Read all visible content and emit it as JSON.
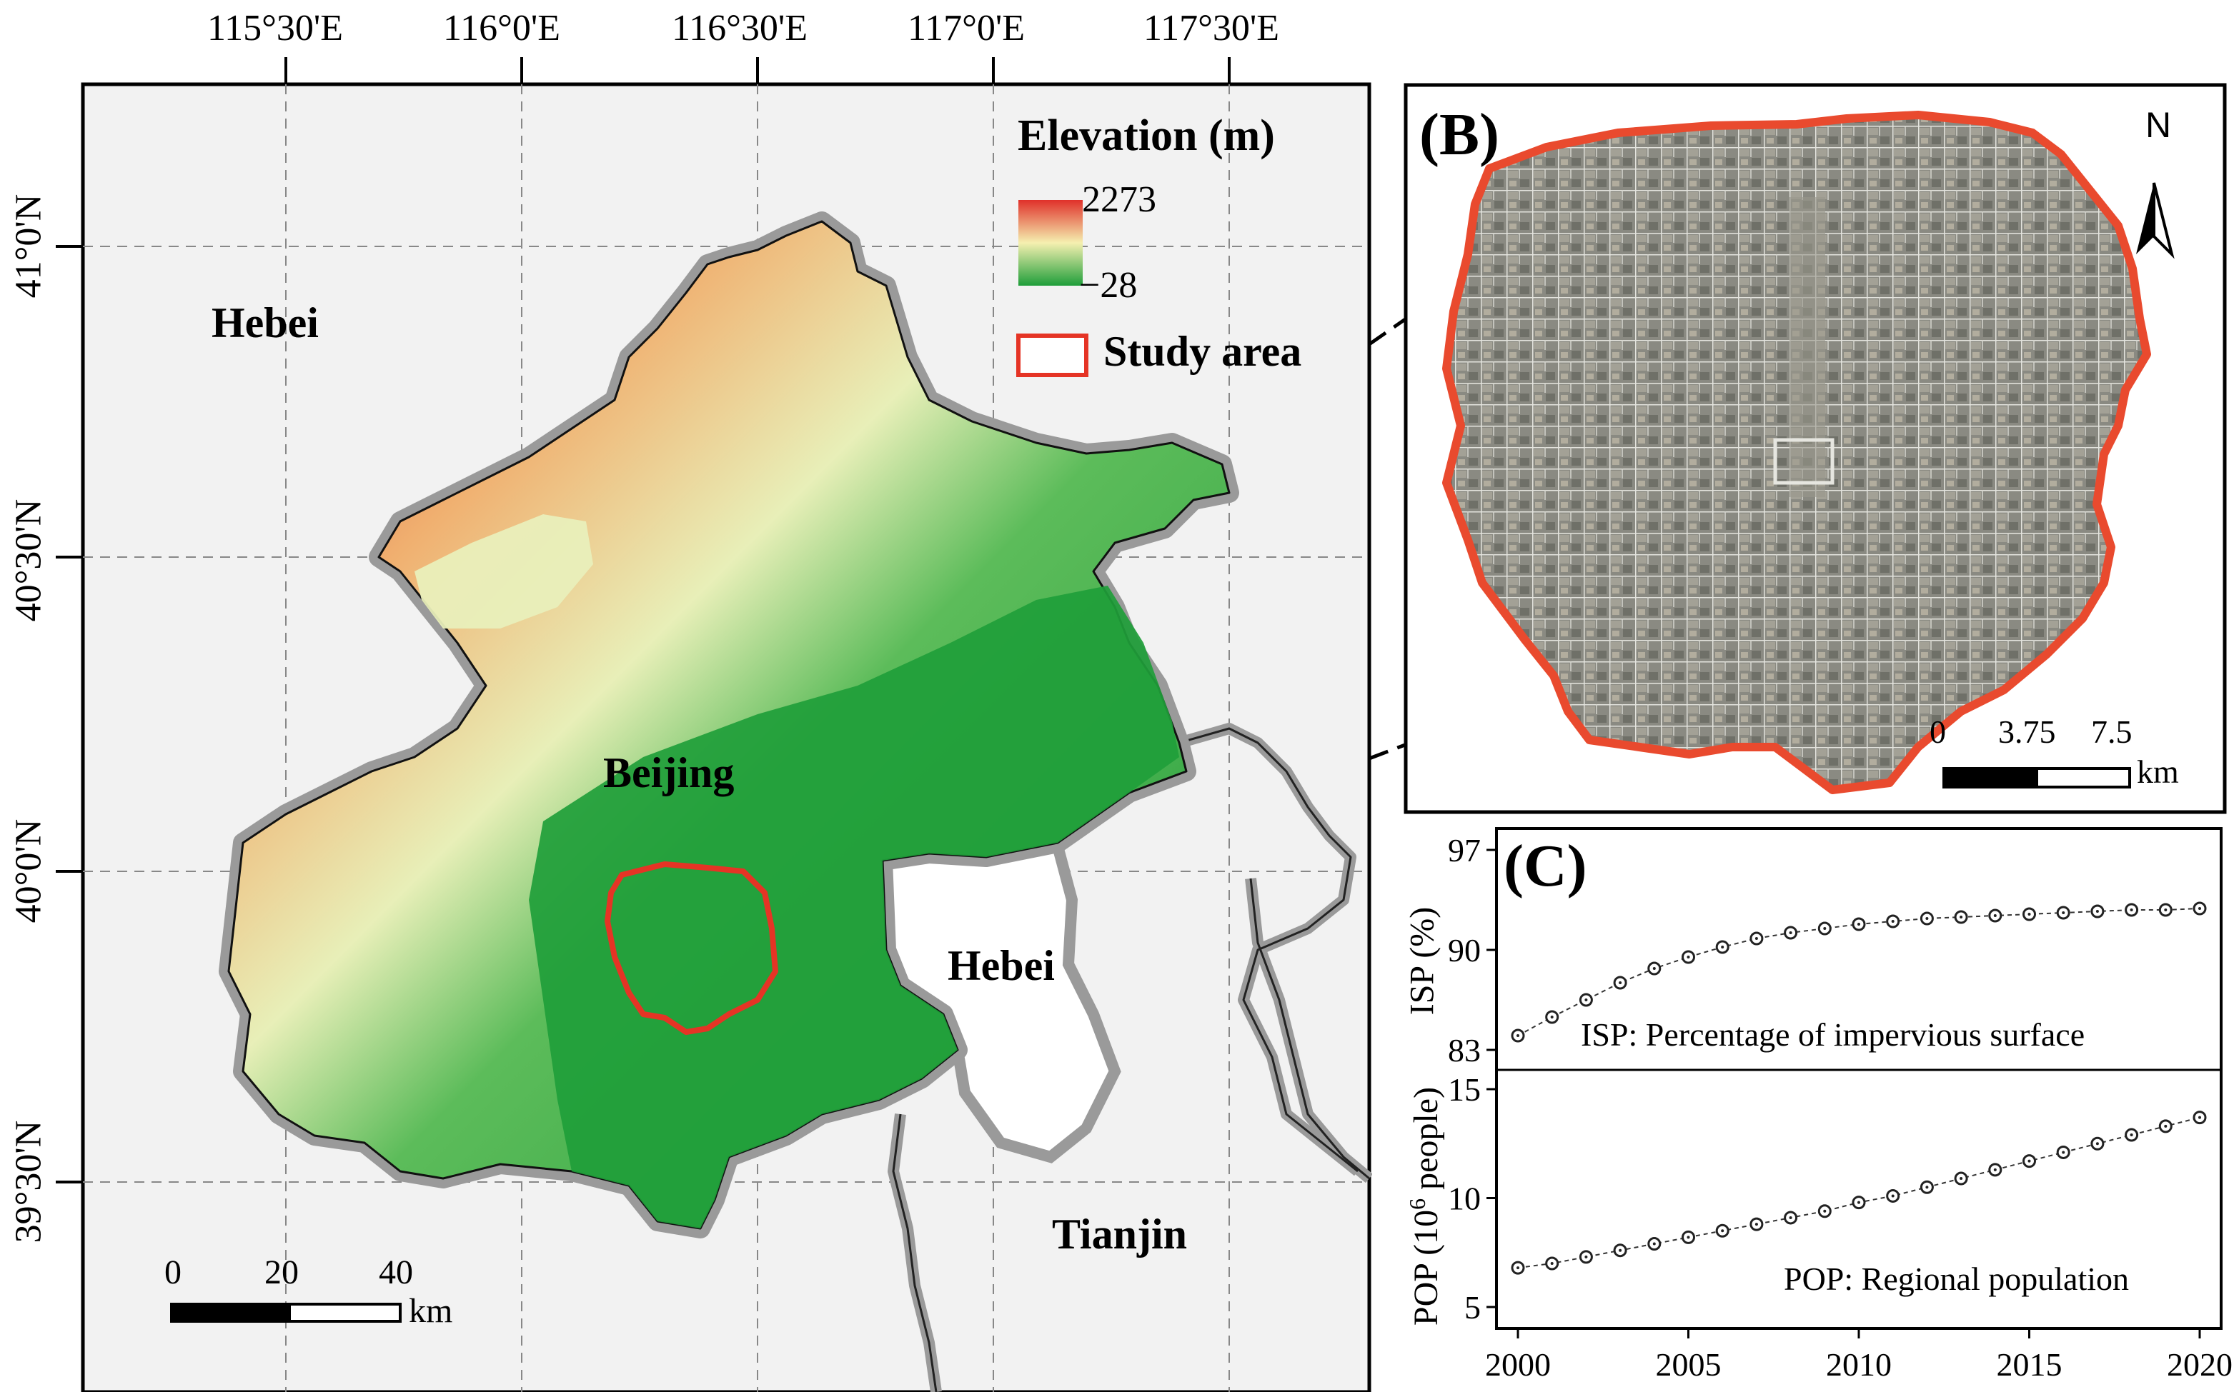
{
  "figure": {
    "panel_a": {
      "lon_ticks": [
        "115°30'E",
        "116°0'E",
        "116°30'E",
        "117°0'E",
        "117°30'E"
      ],
      "lat_ticks": [
        "41°0'N",
        "40°30'N",
        "40°0'N",
        "39°30'N"
      ],
      "regions": {
        "hebei_nw": "Hebei",
        "beijing": "Beijing",
        "hebei_se": "Hebei",
        "tianjin": "Tianjin"
      },
      "legend": {
        "title": "Elevation (m)",
        "max": "2273",
        "min": "−28",
        "study_area": "Study area",
        "colors": [
          "#e0302a",
          "#f5f0b0",
          "#1f9e3a"
        ]
      },
      "scalebar": {
        "ticks": [
          "0",
          "20",
          "40"
        ],
        "unit": "km"
      }
    },
    "panel_b": {
      "label": "(B)",
      "north": "N",
      "scalebar": {
        "ticks": [
          "0",
          "3.75",
          "7.5"
        ],
        "unit": "km"
      }
    },
    "panel_c": {
      "label": "(C)",
      "isp_ylabel": "ISP (%)",
      "isp_note": "ISP: Percentage of impervious surface",
      "pop_ylabel_pre": "POP (10",
      "pop_ylabel_sup": "6",
      "pop_ylabel_post": " people)",
      "pop_note": "POP: Regional population",
      "isp_ticks": [
        "83",
        "90",
        "97"
      ],
      "pop_ticks": [
        "5",
        "10",
        "15"
      ],
      "x_ticks": [
        "2000",
        "2005",
        "2010",
        "2015",
        "2020"
      ]
    }
  },
  "chart_data": [
    {
      "type": "line",
      "name": "ISP",
      "ylabel": "ISP (%)",
      "x": [
        2000,
        2001,
        2002,
        2003,
        2004,
        2005,
        2006,
        2007,
        2008,
        2009,
        2010,
        2011,
        2012,
        2013,
        2014,
        2015,
        2016,
        2017,
        2018,
        2019,
        2020
      ],
      "values": [
        84.0,
        85.3,
        86.5,
        87.7,
        88.7,
        89.5,
        90.2,
        90.8,
        91.2,
        91.5,
        91.8,
        92.0,
        92.2,
        92.3,
        92.4,
        92.5,
        92.6,
        92.7,
        92.8,
        92.8,
        92.9
      ],
      "xlim": [
        2000,
        2020
      ],
      "ylim": [
        83,
        97
      ],
      "grid": false
    },
    {
      "type": "line",
      "name": "POP",
      "ylabel": "POP (10^6 people)",
      "x": [
        2000,
        2001,
        2002,
        2003,
        2004,
        2005,
        2006,
        2007,
        2008,
        2009,
        2010,
        2011,
        2012,
        2013,
        2014,
        2015,
        2016,
        2017,
        2018,
        2019,
        2020
      ],
      "values": [
        6.8,
        7.0,
        7.3,
        7.6,
        7.9,
        8.2,
        8.5,
        8.8,
        9.1,
        9.4,
        9.8,
        10.1,
        10.5,
        10.9,
        11.3,
        11.7,
        12.1,
        12.5,
        12.9,
        13.3,
        13.7
      ],
      "xlim": [
        2000,
        2020
      ],
      "ylim": [
        5,
        15
      ],
      "grid": false
    }
  ]
}
